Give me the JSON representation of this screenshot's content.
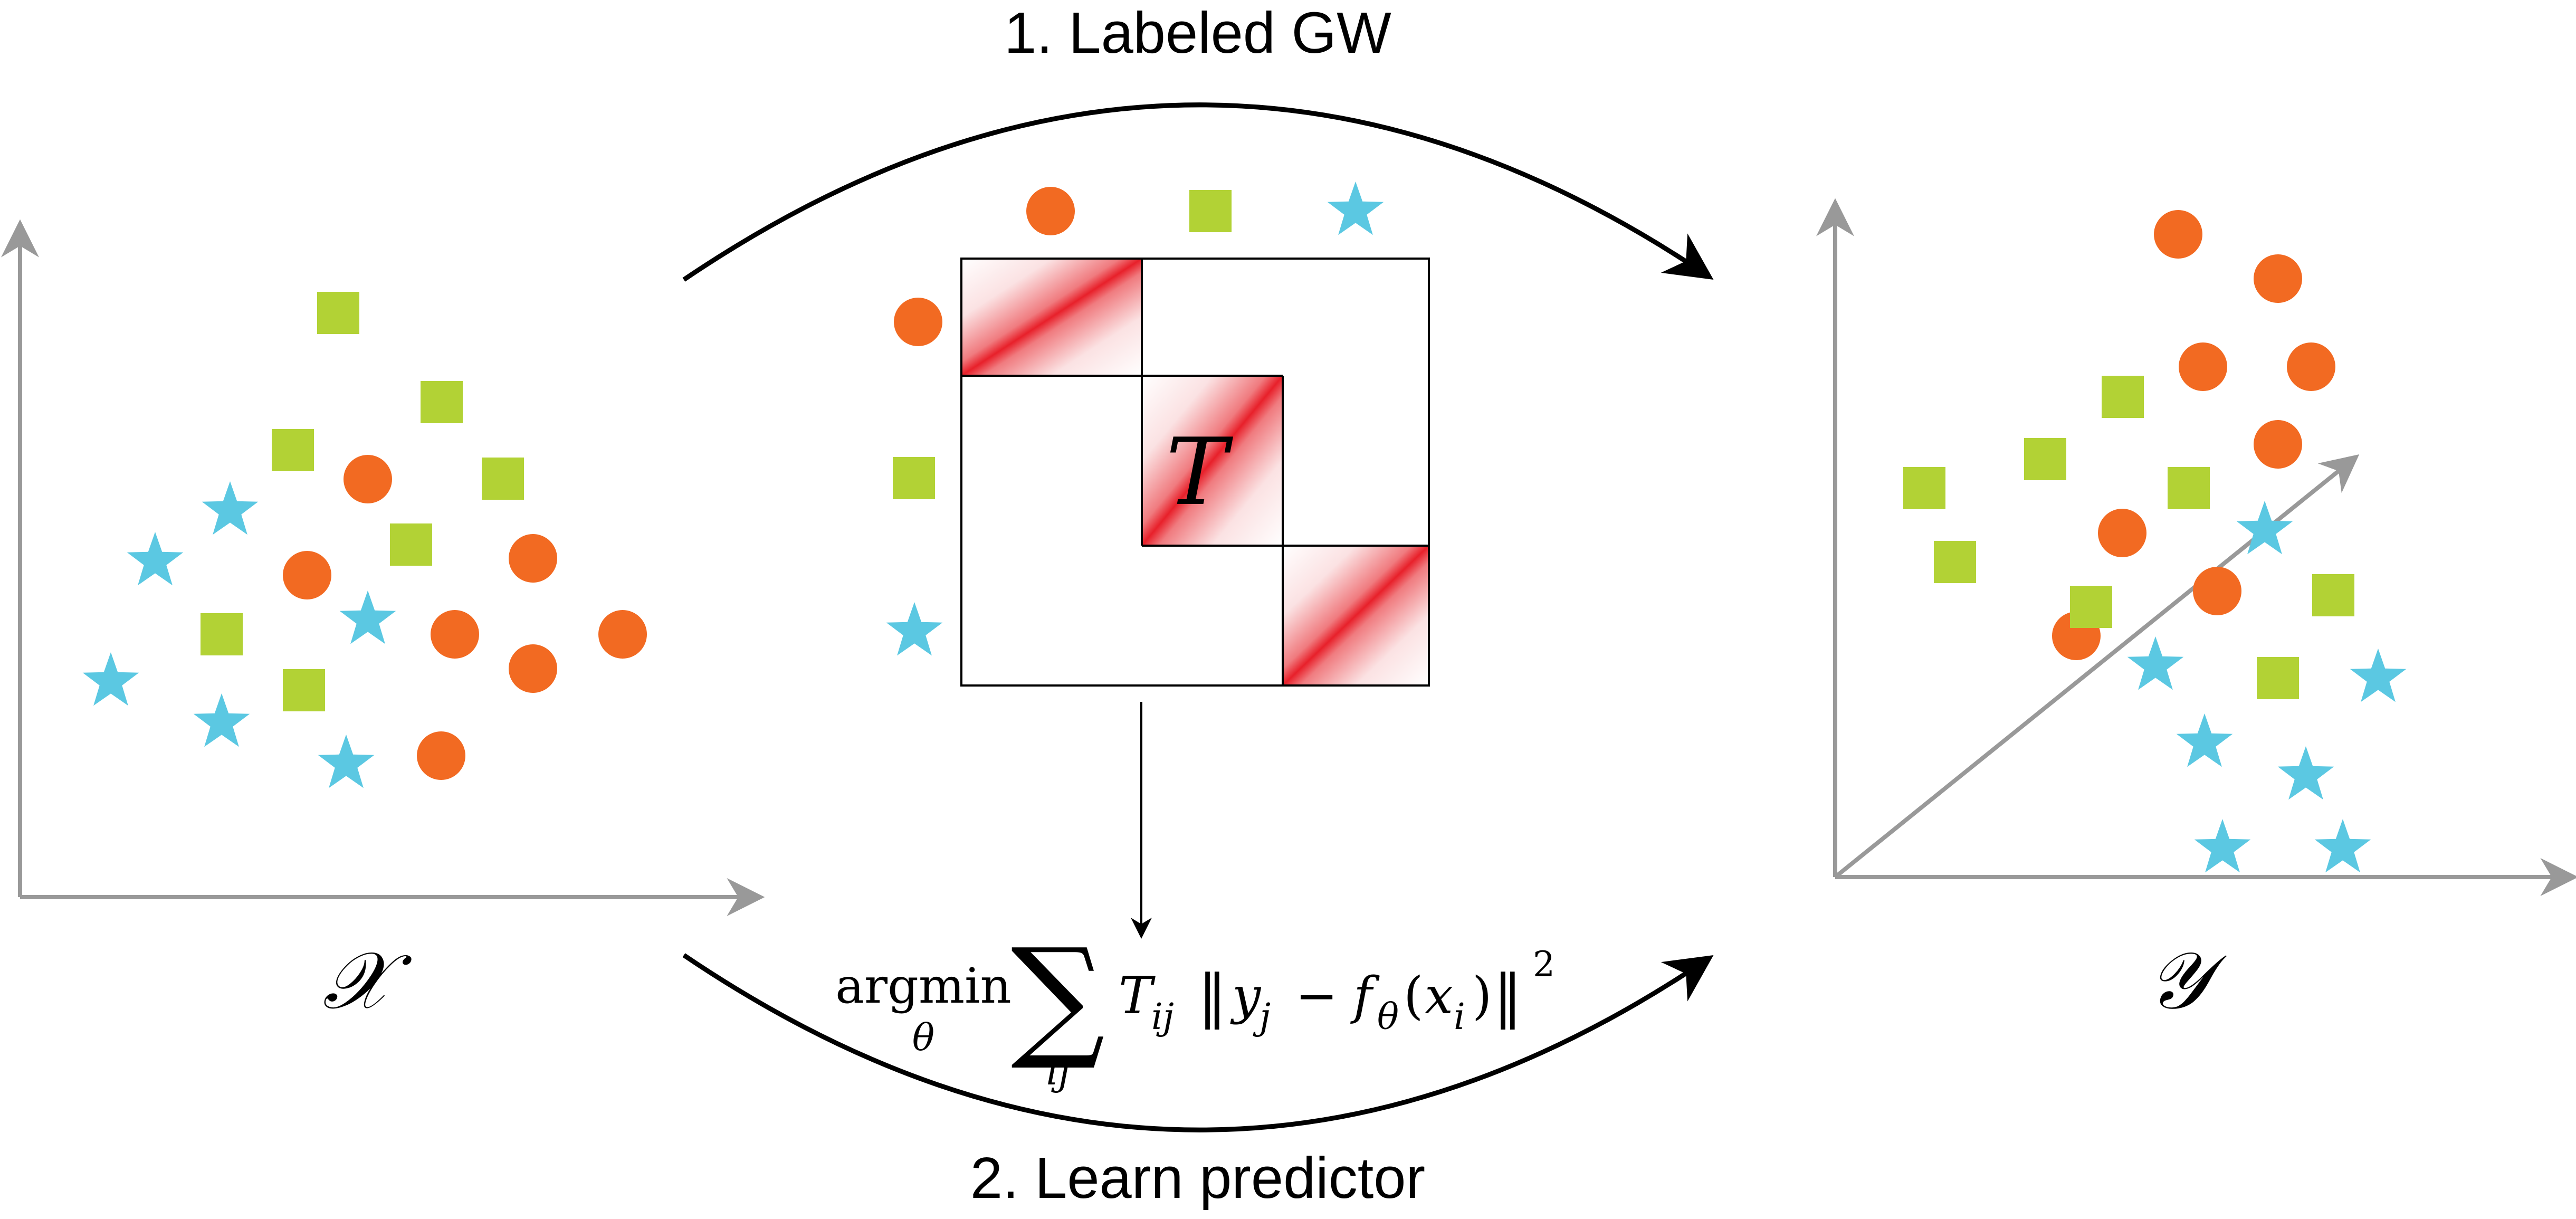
{
  "steps": {
    "step1": "1. Labeled GW",
    "step2": "2. Learn predictor"
  },
  "spaces": {
    "source": "𝒳",
    "target": "𝒴"
  },
  "matrix": {
    "label": "T"
  },
  "objective": {
    "op": "argmin",
    "op_sub": "θ",
    "sum": "∑",
    "sum_sub": "ij",
    "weight": "T",
    "weight_sub": "ij",
    "norm_open": "‖",
    "y": "y",
    "y_sub": "j",
    "minus": "−",
    "f": "f",
    "f_sub": "θ",
    "x_open": "(",
    "x": "x",
    "x_sub": "i",
    "x_close": ")",
    "norm_close": "‖",
    "power": "2"
  },
  "colors": {
    "circle": "#F26A22",
    "square": "#B2D235",
    "star": "#5BC8E2",
    "axis": "#999999",
    "arrow": "#000000",
    "matrix_red": "#E8202A"
  }
}
